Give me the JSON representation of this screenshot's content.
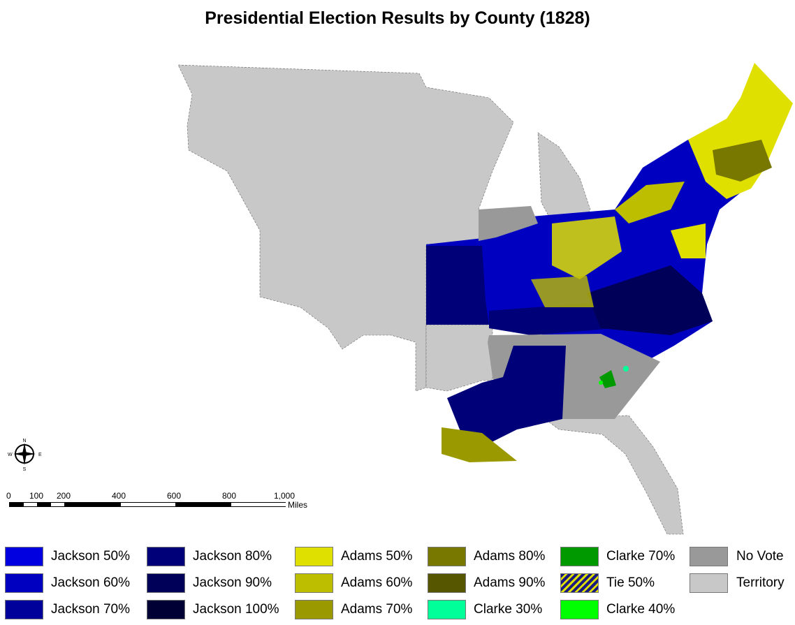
{
  "title": "Presidential Election Results by County (1828)",
  "compass": {
    "n": "N",
    "s": "S",
    "e": "E",
    "w": "W"
  },
  "scale": {
    "ticks": [
      "0",
      "100",
      "200",
      "400",
      "600",
      "800",
      "1,000"
    ],
    "unit": "Miles"
  },
  "legend": [
    {
      "label": "Jackson 50%",
      "color": "#0000e0"
    },
    {
      "label": "Jackson 60%",
      "color": "#0000c0"
    },
    {
      "label": "Jackson 70%",
      "color": "#00009a"
    },
    {
      "label": "Jackson 80%",
      "color": "#000078"
    },
    {
      "label": "Jackson 90%",
      "color": "#000058"
    },
    {
      "label": "Jackson 100%",
      "color": "#000035"
    },
    {
      "label": "Adams 50%",
      "color": "#e0e000"
    },
    {
      "label": "Adams 60%",
      "color": "#bebe00"
    },
    {
      "label": "Adams 70%",
      "color": "#9a9a00"
    },
    {
      "label": "Adams 80%",
      "color": "#787800"
    },
    {
      "label": "Adams 90%",
      "color": "#565600"
    },
    {
      "label": "Clarke 30%",
      "color": "#00ff99"
    },
    {
      "label": "Clarke 40%",
      "color": "#00ff00"
    },
    {
      "label": "Clarke 70%",
      "color": "#009900"
    },
    {
      "label": "Tie 50%",
      "color": "#1a1a80"
    },
    {
      "label": "No Vote",
      "color": "#999999"
    },
    {
      "label": "Territory",
      "color": "#c8c8c8"
    }
  ]
}
